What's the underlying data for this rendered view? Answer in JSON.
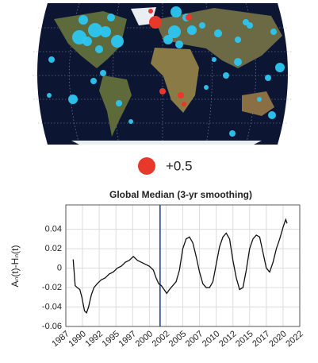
{
  "map_legend": {
    "label": "+0.5",
    "color": "#e8382a"
  },
  "chart_data": {
    "type": "line",
    "title": "Global Median (3-yr smoothing)",
    "ylabel": "Aₙ(t)-Hₙ(t)",
    "x": [
      1988.6,
      1988.9,
      1989.2,
      1989.6,
      1989.9,
      1990.3,
      1990.6,
      1990.9,
      1991.3,
      1991.7,
      1992.2,
      1992.8,
      1993.4,
      1994.0,
      1994.6,
      1995.2,
      1995.8,
      1996.4,
      1997.0,
      1997.6,
      1998.2,
      1998.8,
      1999.4,
      2000.0,
      2000.6,
      2001.0,
      2001.4,
      2001.8,
      2002.2,
      2002.6,
      2003.0,
      2003.5,
      2004.0,
      2004.5,
      2005.0,
      2005.5,
      2006.0,
      2006.5,
      2007.0,
      2007.5,
      2008.0,
      2008.5,
      2009.0,
      2009.5,
      2010.0,
      2010.5,
      2011.0,
      2011.5,
      2012.0,
      2012.5,
      2013.0,
      2013.5,
      2014.0,
      2014.5,
      2015.0,
      2015.5,
      2016.0,
      2016.5,
      2017.0,
      2017.5,
      2018.0,
      2018.5,
      2019.0,
      2019.5,
      2020.0,
      2020.4,
      2020.6
    ],
    "series": [
      {
        "name": "Global Median",
        "color": "#111111",
        "values": [
          0.009,
          -0.018,
          -0.02,
          -0.022,
          -0.03,
          -0.044,
          -0.046,
          -0.04,
          -0.028,
          -0.02,
          -0.016,
          -0.012,
          -0.01,
          -0.006,
          -0.004,
          0.0,
          0.002,
          0.006,
          0.008,
          0.012,
          0.008,
          0.006,
          0.004,
          0.002,
          -0.002,
          -0.01,
          -0.016,
          -0.018,
          -0.022,
          -0.026,
          -0.022,
          -0.018,
          -0.014,
          -0.002,
          0.02,
          0.03,
          0.032,
          0.026,
          0.012,
          -0.004,
          -0.016,
          -0.02,
          -0.02,
          -0.014,
          0.004,
          0.022,
          0.032,
          0.036,
          0.03,
          0.008,
          -0.01,
          -0.022,
          -0.02,
          -0.002,
          0.02,
          0.03,
          0.034,
          0.032,
          0.016,
          0.0,
          -0.004,
          0.006,
          0.02,
          0.03,
          0.042,
          0.05,
          0.046
        ]
      }
    ],
    "vline": {
      "x": 2001.6,
      "color": "#2b3bb0"
    },
    "xlim": [
      1987.5,
      2022.5
    ],
    "xticks": [
      {
        "value": 1987.5,
        "label": "1987"
      },
      1990,
      {
        "value": 1992.5,
        "label": "1992"
      },
      1995,
      {
        "value": 1997.5,
        "label": "1997"
      },
      2000,
      {
        "value": 2002.5,
        "label": "2002"
      },
      2005,
      {
        "value": 2007.5,
        "label": "2007"
      },
      2010,
      {
        "value": 2012.5,
        "label": "2012"
      },
      2015,
      {
        "value": 2017.5,
        "label": "2017"
      },
      2020,
      {
        "value": 2022.5,
        "label": "2022"
      }
    ],
    "ylim": [
      -0.06,
      0.065
    ],
    "yticks": [
      -0.06,
      -0.04,
      -0.02,
      0,
      0.02,
      0.04
    ],
    "grid": true
  }
}
